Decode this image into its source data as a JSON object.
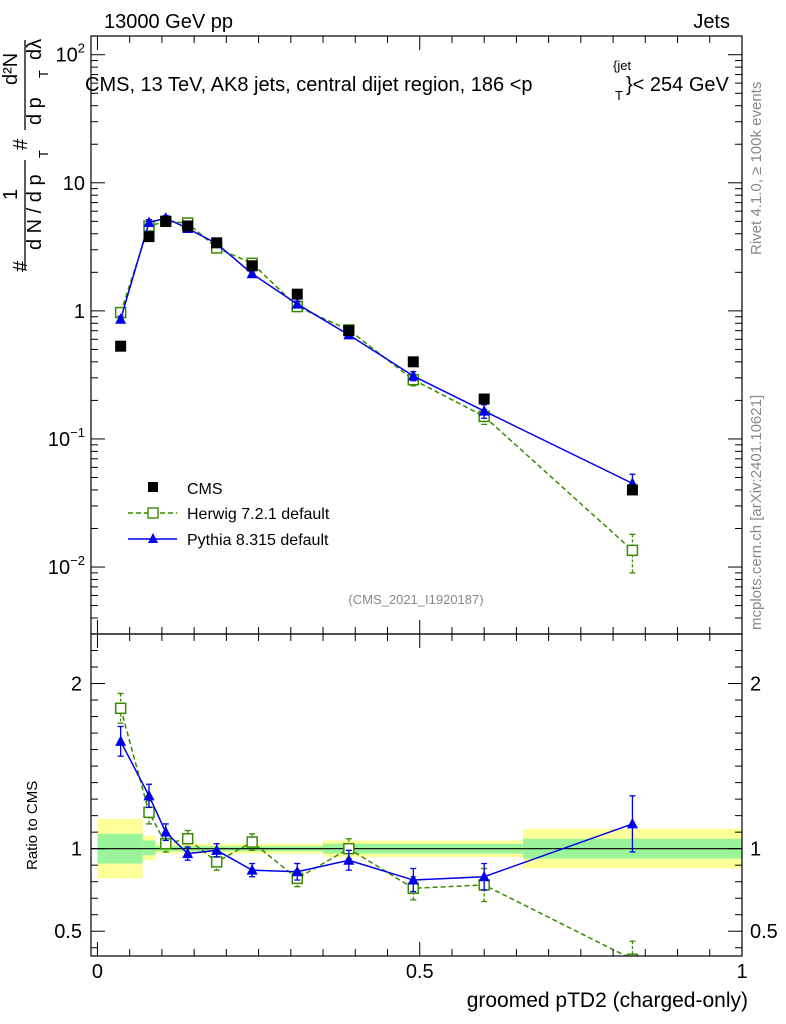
{
  "header": {
    "left": "13000 GeV pp",
    "right": "Jets"
  },
  "side": {
    "rivet": "Rivet 4.1.0, ≥ 100k events",
    "mcplots": "mcplots.cern.ch [arXiv:2401.10621]"
  },
  "colors": {
    "cms": "#000000",
    "herwig": "#3a8a00",
    "pythia": "#0000ee",
    "band_inner": "#9af59a",
    "band_outer": "#ffff99"
  },
  "chart_data": [
    {
      "type": "scatter",
      "title": "CMS, 13 TeV, AK8 jets, central dijet region, 186 <p{jet}T}< 254 GeV",
      "title_parts": {
        "pre": "CMS, 13 TeV, AK8 jets, central dijet region, 186 <p",
        "sup": "{jet",
        "sub": "T",
        "post": "}< 254 GeV"
      },
      "ylabel_parts": {
        "hash": "#",
        "one": "1",
        "denom": "d N / d p",
        "sub_t": "T",
        "numer": "d²N",
        "numer_denom": "d p",
        "dl": "dλ"
      },
      "yscale": "log",
      "ylim": [
        0.003,
        140
      ],
      "xlim": [
        -0.01,
        1.0
      ],
      "yticks": [
        {
          "value": 0.01,
          "base": "10",
          "exp": "−2"
        },
        {
          "value": 0.1,
          "base": "10",
          "exp": "−1"
        },
        {
          "value": 1,
          "label": "1"
        },
        {
          "value": 10,
          "label": "10"
        },
        {
          "value": 100,
          "base": "10",
          "exp": "2"
        }
      ],
      "legend": [
        "CMS",
        "Herwig 7.2.1 default",
        "Pythia 8.315 default"
      ],
      "legend_position": "lower-left",
      "watermark": "(CMS_2021_I1920187)",
      "series": [
        {
          "name": "CMS",
          "style": "square-filled",
          "x": [
            0.036,
            0.08,
            0.106,
            0.14,
            0.185,
            0.24,
            0.31,
            0.39,
            0.49,
            0.6,
            0.83
          ],
          "y": [
            0.53,
            3.8,
            5.0,
            4.6,
            3.4,
            2.25,
            1.35,
            0.7,
            0.4,
            0.205,
            0.04
          ]
        },
        {
          "name": "Herwig 7.2.1 default",
          "style": "square-open-dashed",
          "x": [
            0.036,
            0.08,
            0.106,
            0.14,
            0.185,
            0.24,
            0.31,
            0.39,
            0.49,
            0.6,
            0.83
          ],
          "y": [
            0.97,
            4.6,
            5.0,
            4.85,
            3.1,
            2.35,
            1.08,
            0.71,
            0.29,
            0.15,
            0.0135
          ],
          "err": [
            0.05,
            0.25,
            0.25,
            0.25,
            0.15,
            0.12,
            0.06,
            0.04,
            0.03,
            0.02,
            0.0045
          ]
        },
        {
          "name": "Pythia 8.315 default",
          "style": "triangle-solid",
          "x": [
            0.036,
            0.08,
            0.106,
            0.14,
            0.185,
            0.24,
            0.31,
            0.39,
            0.49,
            0.6,
            0.83
          ],
          "y": [
            0.86,
            4.9,
            5.3,
            4.4,
            3.35,
            1.95,
            1.13,
            0.65,
            0.31,
            0.165,
            0.045
          ],
          "err": [
            0.05,
            0.25,
            0.25,
            0.2,
            0.15,
            0.1,
            0.06,
            0.04,
            0.025,
            0.02,
            0.008
          ]
        }
      ]
    },
    {
      "type": "scatter",
      "ylabel": "Ratio to CMS",
      "xlabel": "groomed pTD2 (charged-only)",
      "ylim": [
        0.35,
        2.3
      ],
      "xlim": [
        -0.01,
        1.0
      ],
      "yticks": [
        0.5,
        1,
        2
      ],
      "xticks": [
        {
          "value": 0,
          "label": "0"
        },
        {
          "value": 0.5,
          "label": "0.5"
        },
        {
          "value": 1,
          "label": "1"
        }
      ],
      "bands": [
        {
          "x0": 0.0,
          "x1": 0.07,
          "inner": [
            0.91,
            1.09
          ],
          "outer": [
            0.82,
            1.18
          ]
        },
        {
          "x0": 0.07,
          "x1": 0.09,
          "inner": [
            0.96,
            1.05
          ],
          "outer": [
            0.93,
            1.08
          ]
        },
        {
          "x0": 0.09,
          "x1": 0.2,
          "inner": [
            0.985,
            1.015
          ],
          "outer": [
            0.97,
            1.03
          ]
        },
        {
          "x0": 0.2,
          "x1": 0.35,
          "inner": [
            0.985,
            1.015
          ],
          "outer": [
            0.97,
            1.03
          ]
        },
        {
          "x0": 0.35,
          "x1": 0.66,
          "inner": [
            0.97,
            1.03
          ],
          "outer": [
            0.95,
            1.05
          ]
        },
        {
          "x0": 0.66,
          "x1": 1.0,
          "inner": [
            0.94,
            1.06
          ],
          "outer": [
            0.88,
            1.12
          ]
        }
      ],
      "series": [
        {
          "name": "Herwig 7.2.1 default",
          "style": "square-open-dashed",
          "x": [
            0.036,
            0.08,
            0.106,
            0.14,
            0.185,
            0.24,
            0.31,
            0.39,
            0.49,
            0.6,
            0.83
          ],
          "y": [
            1.85,
            1.22,
            1.03,
            1.06,
            0.92,
            1.04,
            0.82,
            1.0,
            0.76,
            0.78,
            0.33
          ],
          "err": [
            0.09,
            0.07,
            0.05,
            0.05,
            0.05,
            0.05,
            0.05,
            0.06,
            0.07,
            0.1,
            0.11
          ]
        },
        {
          "name": "Pythia 8.315 default",
          "style": "triangle-solid",
          "x": [
            0.036,
            0.08,
            0.106,
            0.14,
            0.185,
            0.24,
            0.31,
            0.39,
            0.49,
            0.6,
            0.83
          ],
          "y": [
            1.65,
            1.32,
            1.1,
            0.97,
            0.99,
            0.87,
            0.86,
            0.93,
            0.81,
            0.83,
            1.15
          ],
          "err": [
            0.09,
            0.07,
            0.05,
            0.04,
            0.04,
            0.04,
            0.05,
            0.06,
            0.07,
            0.08,
            0.17
          ]
        }
      ]
    }
  ]
}
